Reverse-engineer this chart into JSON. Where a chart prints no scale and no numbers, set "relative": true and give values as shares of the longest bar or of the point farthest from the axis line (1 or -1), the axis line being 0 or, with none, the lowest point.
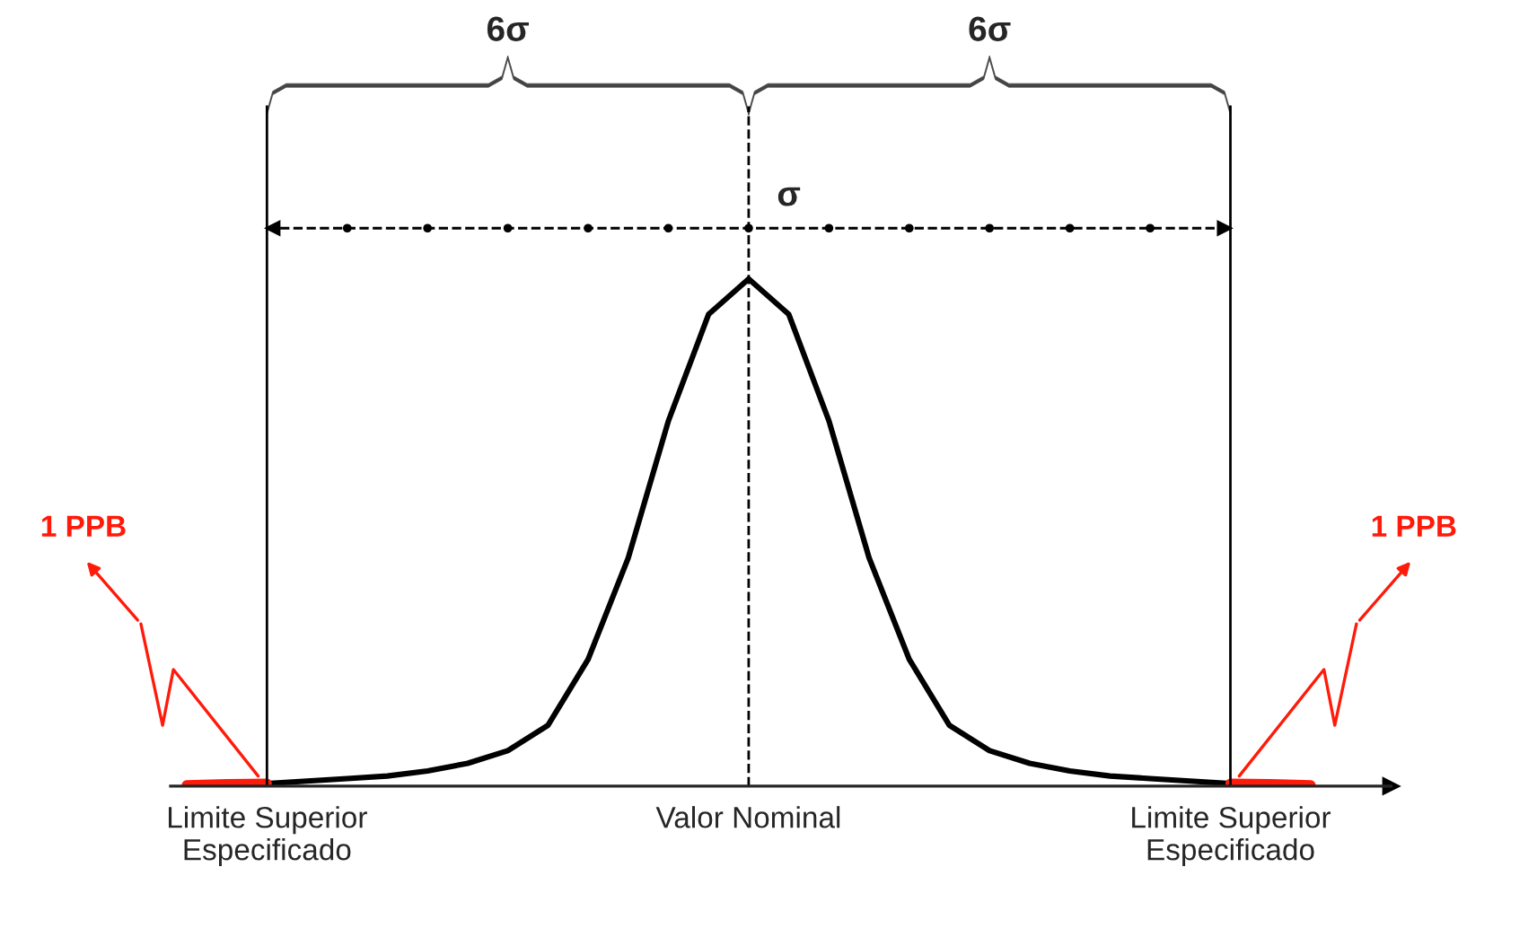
{
  "chart_data": {
    "type": "line",
    "relative": true,
    "grid": "x",
    "categories": [
      null,
      null,
      "Limite Superior\nEspecificado",
      null,
      null,
      null,
      null,
      null,
      null,
      null,
      null,
      null,
      null,
      null,
      "Valor Nominal",
      null,
      null,
      null,
      null,
      null,
      null,
      null,
      null,
      null,
      null,
      null,
      "Limite Superior\nEspecificado",
      null,
      null
    ],
    "series": [
      {
        "color": "#000000",
        "values": [
          null,
          null,
          0.005,
          0.01,
          0.015,
          0.02,
          0.03,
          0.045,
          0.07,
          0.12,
          0.25,
          0.45,
          0.72,
          0.93,
          1,
          0.93,
          0.72,
          0.45,
          0.25,
          0.12,
          0.07,
          0.045,
          0.03,
          0.02,
          0.015,
          0.01,
          0.005,
          null,
          null
        ]
      },
      {
        "color": "#ff1a0a",
        "values": [
          0.002,
          0.004,
          0.005,
          null,
          null,
          null,
          null,
          null,
          null,
          null,
          null,
          null,
          null,
          null,
          null,
          null,
          null,
          null,
          null,
          null,
          null,
          null,
          null,
          null,
          null,
          null,
          null,
          null,
          null
        ]
      },
      {
        "color": "#ff1a0a",
        "values": [
          null,
          null,
          null,
          null,
          null,
          null,
          null,
          null,
          null,
          null,
          null,
          null,
          null,
          null,
          null,
          null,
          null,
          null,
          null,
          null,
          null,
          null,
          null,
          null,
          null,
          null,
          0.005,
          0.004,
          0.002
        ]
      }
    ],
    "annotations": [
      "6σ",
      "6σ",
      "σ",
      "1 PPB",
      "1 PPB"
    ]
  }
}
